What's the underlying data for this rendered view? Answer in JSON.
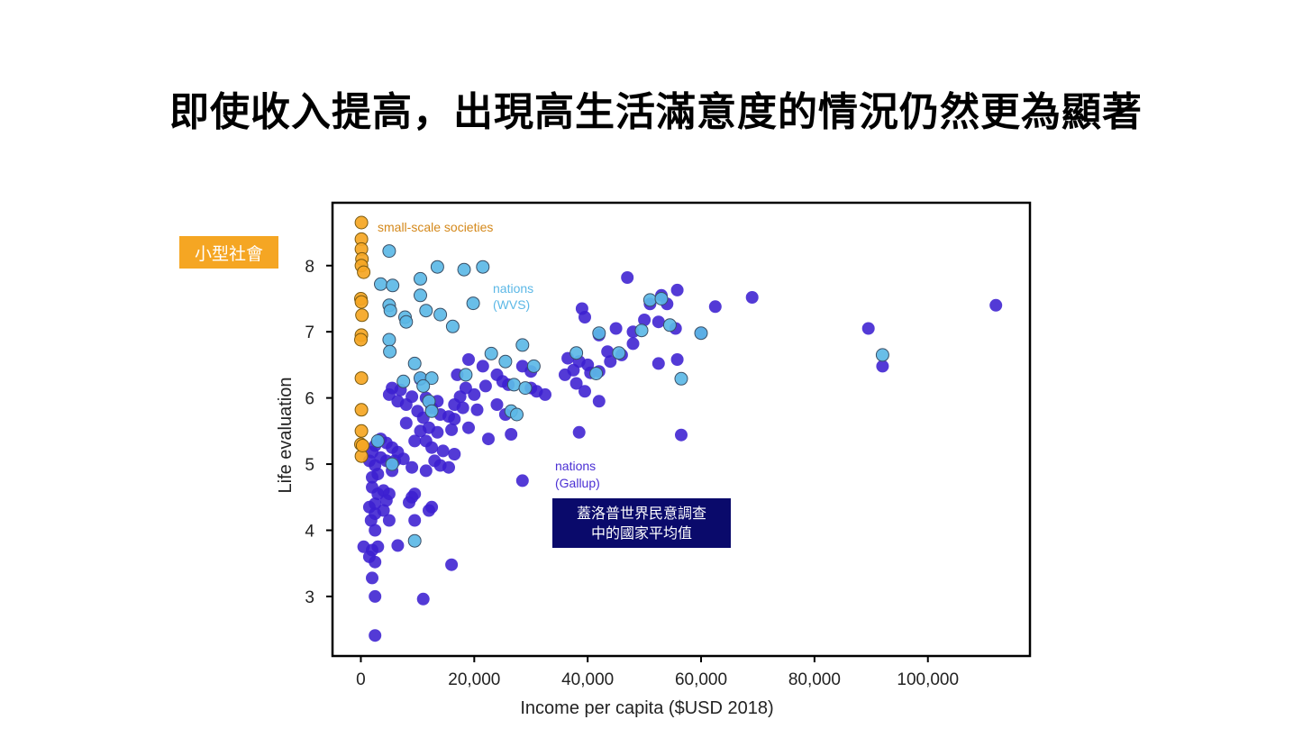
{
  "slide": {
    "title": "即使收入提高，出現高生活滿意度的情況仍然更為顯著"
  },
  "callouts": {
    "small_societies": "小型社會",
    "gallup_line1": "蓋洛普世界民意調查",
    "gallup_line2": "中的國家平均值"
  },
  "colors": {
    "small": "#f5a623",
    "wvs": "#5cb8e6",
    "gallup": "#3b1fd0"
  },
  "chart_data": {
    "type": "scatter",
    "title": "",
    "xlabel": "Income per capita ($USD 2018)",
    "ylabel": "Life evaluation",
    "xlim": [
      -5000,
      118000
    ],
    "ylim": [
      2.1,
      8.95
    ],
    "xticks": [
      0,
      20000,
      40000,
      60000,
      80000,
      100000
    ],
    "xtick_labels": [
      "0",
      "20,000",
      "40,000",
      "60,000",
      "80,000",
      "100,000"
    ],
    "yticks": [
      3,
      4,
      5,
      6,
      7,
      8
    ],
    "ytick_labels": [
      "3",
      "4",
      "5",
      "6",
      "7",
      "8"
    ],
    "annotations": {
      "small": "small-scale societies",
      "wvs_1": "nations",
      "wvs_2": "(WVS)",
      "gallup_1": "nations",
      "gallup_2": "(Gallup)"
    },
    "series": [
      {
        "name": "small-scale societies",
        "points": [
          [
            100,
            8.65
          ],
          [
            100,
            8.4
          ],
          [
            100,
            8.25
          ],
          [
            200,
            8.1
          ],
          [
            100,
            8.0
          ],
          [
            500,
            7.9
          ],
          [
            0,
            7.5
          ],
          [
            100,
            7.45
          ],
          [
            200,
            7.25
          ],
          [
            100,
            6.95
          ],
          [
            0,
            6.88
          ],
          [
            100,
            6.3
          ],
          [
            100,
            5.82
          ],
          [
            100,
            5.5
          ],
          [
            0,
            5.3
          ],
          [
            100,
            5.12
          ],
          [
            300,
            5.28
          ]
        ]
      },
      {
        "name": "nations (WVS)",
        "points": [
          [
            5000,
            8.22
          ],
          [
            13500,
            7.98
          ],
          [
            18200,
            7.94
          ],
          [
            21500,
            7.98
          ],
          [
            3500,
            7.72
          ],
          [
            5600,
            7.7
          ],
          [
            10500,
            7.8
          ],
          [
            10500,
            7.55
          ],
          [
            19800,
            7.43
          ],
          [
            5000,
            7.4
          ],
          [
            5200,
            7.32
          ],
          [
            7800,
            7.22
          ],
          [
            8000,
            7.15
          ],
          [
            11500,
            7.32
          ],
          [
            14000,
            7.26
          ],
          [
            16200,
            7.08
          ],
          [
            5000,
            6.88
          ],
          [
            5100,
            6.7
          ],
          [
            9500,
            6.52
          ],
          [
            10500,
            6.3
          ],
          [
            12500,
            6.3
          ],
          [
            11000,
            6.18
          ],
          [
            7500,
            6.25
          ],
          [
            18500,
            6.35
          ],
          [
            23000,
            6.67
          ],
          [
            25500,
            6.55
          ],
          [
            28500,
            6.8
          ],
          [
            30500,
            6.48
          ],
          [
            27000,
            6.2
          ],
          [
            26500,
            5.8
          ],
          [
            27500,
            5.75
          ],
          [
            29000,
            6.15
          ],
          [
            38000,
            6.68
          ],
          [
            41500,
            6.37
          ],
          [
            42000,
            6.98
          ],
          [
            45500,
            6.68
          ],
          [
            51000,
            7.48
          ],
          [
            53000,
            7.5
          ],
          [
            54500,
            7.1
          ],
          [
            49500,
            7.02
          ],
          [
            56500,
            6.29
          ],
          [
            60000,
            6.98
          ],
          [
            92000,
            6.65
          ],
          [
            9500,
            3.84
          ],
          [
            5500,
            5.0
          ],
          [
            3000,
            5.35
          ],
          [
            12000,
            5.95
          ],
          [
            12500,
            5.8
          ]
        ]
      },
      {
        "name": "nations (Gallup)",
        "points": [
          [
            47000,
            7.82
          ],
          [
            55800,
            7.63
          ],
          [
            53000,
            7.55
          ],
          [
            51000,
            7.42
          ],
          [
            54000,
            7.42
          ],
          [
            62500,
            7.38
          ],
          [
            69000,
            7.52
          ],
          [
            112000,
            7.4
          ],
          [
            39000,
            7.35
          ],
          [
            39500,
            7.22
          ],
          [
            50000,
            7.18
          ],
          [
            52500,
            7.15
          ],
          [
            55500,
            7.05
          ],
          [
            48000,
            7.0
          ],
          [
            45000,
            7.05
          ],
          [
            42000,
            6.95
          ],
          [
            60000,
            6.98
          ],
          [
            89500,
            7.05
          ],
          [
            48000,
            6.82
          ],
          [
            43500,
            6.7
          ],
          [
            46000,
            6.65
          ],
          [
            36500,
            6.6
          ],
          [
            38500,
            6.55
          ],
          [
            55800,
            6.58
          ],
          [
            52500,
            6.52
          ],
          [
            40000,
            6.5
          ],
          [
            37500,
            6.42
          ],
          [
            36000,
            6.35
          ],
          [
            42000,
            6.4
          ],
          [
            40500,
            6.38
          ],
          [
            44000,
            6.55
          ],
          [
            92000,
            6.48
          ],
          [
            30000,
            6.4
          ],
          [
            28500,
            6.48
          ],
          [
            25000,
            6.25
          ],
          [
            26000,
            6.2
          ],
          [
            31000,
            6.1
          ],
          [
            32500,
            6.05
          ],
          [
            38000,
            6.22
          ],
          [
            39500,
            6.1
          ],
          [
            42000,
            5.95
          ],
          [
            19000,
            6.58
          ],
          [
            21500,
            6.48
          ],
          [
            24000,
            6.35
          ],
          [
            22000,
            6.18
          ],
          [
            20000,
            6.05
          ],
          [
            18500,
            6.15
          ],
          [
            17500,
            6.02
          ],
          [
            16500,
            5.9
          ],
          [
            18000,
            5.85
          ],
          [
            20500,
            5.82
          ],
          [
            15500,
            5.72
          ],
          [
            16500,
            5.68
          ],
          [
            19000,
            5.55
          ],
          [
            16000,
            5.52
          ],
          [
            14000,
            5.75
          ],
          [
            12500,
            5.85
          ],
          [
            13500,
            5.95
          ],
          [
            11500,
            6.0
          ],
          [
            10500,
            6.28
          ],
          [
            9000,
            6.02
          ],
          [
            7000,
            6.12
          ],
          [
            5500,
            6.15
          ],
          [
            5000,
            6.05
          ],
          [
            6500,
            5.95
          ],
          [
            8000,
            5.9
          ],
          [
            10000,
            5.8
          ],
          [
            11000,
            5.7
          ],
          [
            12000,
            5.55
          ],
          [
            13500,
            5.48
          ],
          [
            10500,
            5.5
          ],
          [
            9500,
            5.35
          ],
          [
            11500,
            5.35
          ],
          [
            12500,
            5.25
          ],
          [
            14500,
            5.2
          ],
          [
            16500,
            5.15
          ],
          [
            13000,
            5.05
          ],
          [
            14000,
            4.98
          ],
          [
            15500,
            4.95
          ],
          [
            11500,
            4.9
          ],
          [
            9000,
            4.95
          ],
          [
            7500,
            5.08
          ],
          [
            6500,
            5.18
          ],
          [
            5500,
            5.25
          ],
          [
            4500,
            5.32
          ],
          [
            3500,
            5.38
          ],
          [
            2500,
            5.28
          ],
          [
            2000,
            5.18
          ],
          [
            1500,
            5.05
          ],
          [
            2500,
            4.98
          ],
          [
            3500,
            5.1
          ],
          [
            4500,
            5.05
          ],
          [
            5500,
            4.9
          ],
          [
            3000,
            4.85
          ],
          [
            2000,
            4.8
          ],
          [
            2000,
            4.65
          ],
          [
            3000,
            4.55
          ],
          [
            4000,
            4.6
          ],
          [
            5000,
            4.55
          ],
          [
            4500,
            4.45
          ],
          [
            2500,
            4.4
          ],
          [
            1500,
            4.35
          ],
          [
            2500,
            4.25
          ],
          [
            1800,
            4.15
          ],
          [
            4000,
            4.3
          ],
          [
            5000,
            4.15
          ],
          [
            8500,
            4.42
          ],
          [
            9000,
            4.5
          ],
          [
            9500,
            4.55
          ],
          [
            12000,
            4.3
          ],
          [
            12500,
            4.35
          ],
          [
            9500,
            4.15
          ],
          [
            2500,
            4.0
          ],
          [
            500,
            3.75
          ],
          [
            2000,
            3.7
          ],
          [
            3000,
            3.75
          ],
          [
            1500,
            3.6
          ],
          [
            2500,
            3.52
          ],
          [
            6500,
            3.77
          ],
          [
            16000,
            3.48
          ],
          [
            2000,
            3.28
          ],
          [
            2500,
            3.0
          ],
          [
            11000,
            2.96
          ],
          [
            2500,
            2.41
          ],
          [
            22500,
            5.38
          ],
          [
            26500,
            5.45
          ],
          [
            38500,
            5.48
          ],
          [
            56500,
            5.44
          ],
          [
            28500,
            4.75
          ],
          [
            25500,
            5.75
          ],
          [
            30000,
            6.15
          ],
          [
            24000,
            5.9
          ],
          [
            8000,
            5.62
          ],
          [
            17000,
            6.35
          ],
          [
            6000,
            5.05
          ]
        ]
      }
    ]
  }
}
